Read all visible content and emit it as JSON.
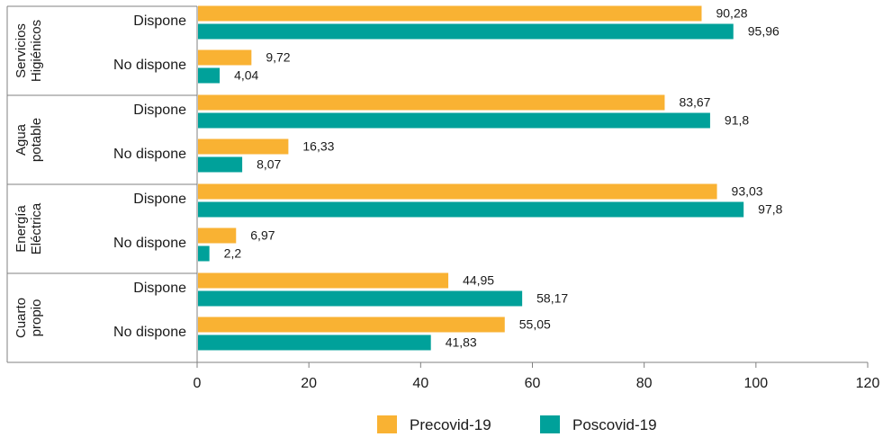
{
  "chart_data": {
    "type": "bar",
    "orientation": "horizontal",
    "title": "",
    "xlabel": "",
    "ylabel": "",
    "xlim": [
      0,
      120
    ],
    "x_ticks": [
      0,
      20,
      40,
      60,
      80,
      100,
      120
    ],
    "grid": false,
    "legend_position": "bottom",
    "groups": [
      {
        "label_lines": [
          "Servicios",
          "Higiénicos"
        ],
        "categories": [
          "Dispone",
          "No dispone"
        ]
      },
      {
        "label_lines": [
          "Agua",
          "potable"
        ],
        "categories": [
          "Dispone",
          "No dispone"
        ]
      },
      {
        "label_lines": [
          "Energía",
          "Eléctrica"
        ],
        "categories": [
          "Dispone",
          "No dispone"
        ]
      },
      {
        "label_lines": [
          "Cuarto",
          "propio"
        ],
        "categories": [
          "Dispone",
          "No dispone"
        ]
      }
    ],
    "series": [
      {
        "name": "Precovid-19",
        "color": "#F9B233",
        "values": [
          90.28,
          9.72,
          83.67,
          16.33,
          93.03,
          6.97,
          44.95,
          55.05
        ],
        "value_labels": [
          "90,28",
          "9,72",
          "83,67",
          "16,33",
          "93,03",
          "6,97",
          "44,95",
          "55,05"
        ]
      },
      {
        "name": "Poscovid-19",
        "color": "#00A19A",
        "values": [
          95.96,
          4.04,
          91.8,
          8.07,
          97.8,
          2.2,
          58.17,
          41.83
        ],
        "value_labels": [
          "95,96",
          "4,04",
          "91,8",
          "8,07",
          "97,8",
          "2,2",
          "58,17",
          "41,83"
        ]
      }
    ]
  }
}
